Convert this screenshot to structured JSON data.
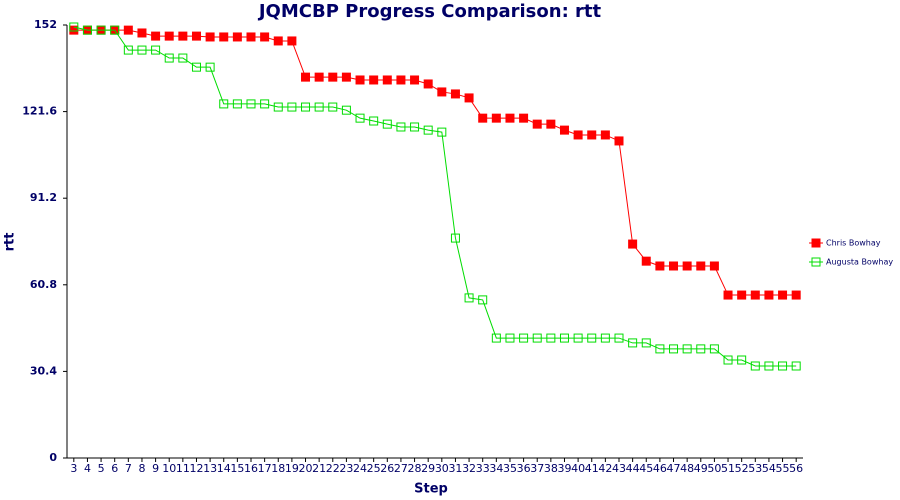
{
  "chart_data": {
    "type": "line",
    "title": "JQMCBP Progress Comparison: rtt",
    "x_label": "Step",
    "y_label": "rtt",
    "categories": [
      "3",
      "4",
      "5",
      "6",
      "7",
      "8",
      "9",
      "10",
      "11",
      "12",
      "13",
      "14",
      "15",
      "16",
      "17",
      "18",
      "19",
      "20",
      "21",
      "22",
      "23",
      "24",
      "25",
      "26",
      "27",
      "28",
      "29",
      "30",
      "31",
      "32",
      "33",
      "34",
      "35",
      "36",
      "37",
      "38",
      "39",
      "40",
      "41",
      "42",
      "43",
      "44",
      "45",
      "46",
      "47",
      "48",
      "49",
      "50",
      "51",
      "52",
      "53",
      "54",
      "55",
      "56"
    ],
    "ylim": [
      0,
      152
    ],
    "yticks": [
      0,
      30.4,
      60.8,
      91.2,
      121.6,
      152
    ],
    "legend": "right",
    "series": [
      {
        "name": "Chris Bowhay",
        "color": "#ff0000",
        "marker": "filled",
        "values": [
          150.2,
          150.2,
          150.2,
          150.2,
          150.2,
          149.2,
          148.1,
          148.1,
          148.1,
          148.1,
          147.8,
          147.8,
          147.8,
          147.8,
          147.8,
          146.4,
          146.4,
          133.7,
          133.7,
          133.7,
          133.7,
          132.7,
          132.7,
          132.7,
          132.7,
          132.7,
          131.3,
          128.5,
          127.8,
          126.4,
          119.3,
          119.3,
          119.3,
          119.3,
          117.2,
          117.2,
          115.1,
          113.4,
          113.4,
          113.4,
          111.3,
          75.1,
          69.1,
          67.4,
          67.4,
          67.4,
          67.4,
          67.4,
          57.2,
          57.2,
          57.2,
          57.2,
          57.2,
          57.2
        ]
      },
      {
        "name": "Augusta Bowhay",
        "color": "#00dd00",
        "marker": "hollow",
        "values": [
          151.3,
          150.2,
          150.2,
          150.2,
          143.2,
          143.2,
          143.2,
          140.4,
          140.4,
          137.2,
          137.2,
          124.3,
          124.3,
          124.3,
          124.3,
          123.2,
          123.2,
          123.2,
          123.2,
          123.2,
          122.1,
          119.3,
          118.3,
          117.2,
          116.2,
          116.2,
          115.1,
          114.4,
          77.2,
          56.2,
          55.5,
          42.1,
          42.1,
          42.1,
          42.1,
          42.1,
          42.1,
          42.1,
          42.1,
          42.1,
          42.1,
          40.4,
          40.4,
          38.3,
          38.3,
          38.3,
          38.3,
          38.3,
          34.4,
          34.4,
          32.3,
          32.3,
          32.3,
          32.3
        ]
      }
    ]
  }
}
